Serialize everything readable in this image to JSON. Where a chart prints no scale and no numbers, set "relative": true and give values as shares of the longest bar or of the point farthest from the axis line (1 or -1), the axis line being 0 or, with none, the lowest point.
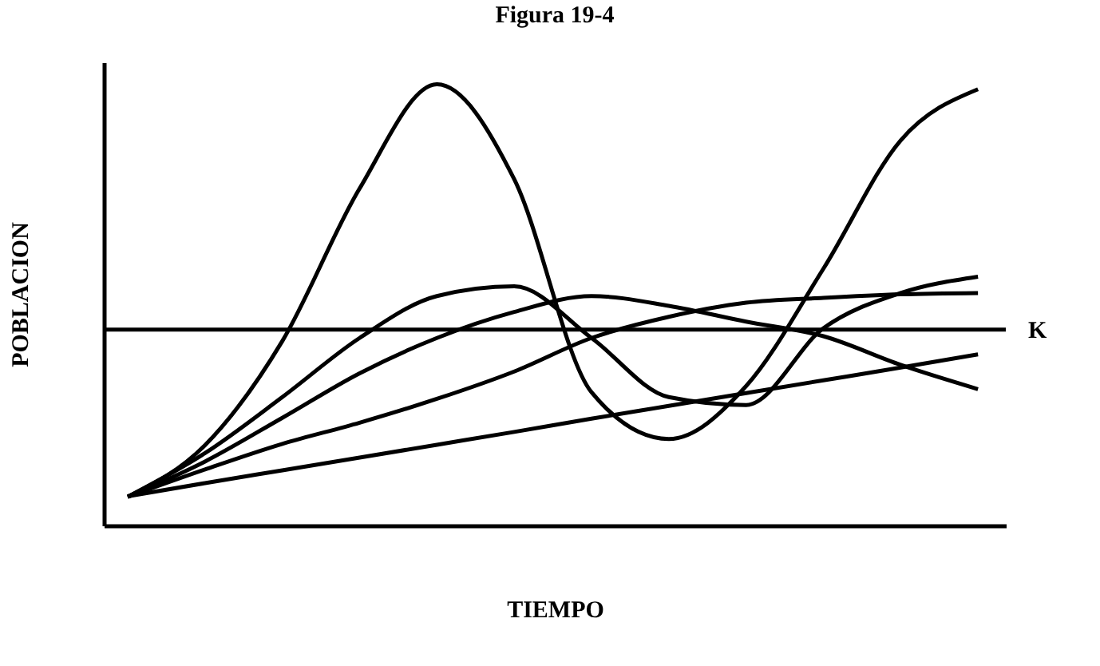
{
  "chart_data": {
    "type": "line",
    "title": "Figura 19-4",
    "xlabel": "TIEMPO",
    "ylabel": "POBLACION",
    "relative": true,
    "categories": [
      null,
      null,
      null,
      null,
      null,
      null,
      null,
      null,
      null,
      null,
      null,
      null
    ],
    "series": [
      {
        "color": "#000000",
        "values": [
          0.065,
          0.182,
          0.418,
          0.764,
          1.0,
          0.785,
          0.302,
          0.196,
          0.316,
          0.582,
          0.873,
          0.989
        ]
      },
      {
        "color": "#000000",
        "values": [
          0.065,
          0.164,
          0.291,
          0.425,
          0.52,
          0.542,
          0.425,
          0.291,
          0.273,
          0.447,
          0.527,
          0.564
        ]
      },
      {
        "color": "#000000",
        "values": [
          0.065,
          0.145,
          0.244,
          0.345,
          0.425,
          0.484,
          0.52,
          0.498,
          0.462,
          0.429,
          0.364,
          0.309
        ]
      },
      {
        "color": "#000000",
        "values": [
          0.065,
          0.127,
          0.185,
          0.233,
          0.287,
          0.349,
          0.425,
          0.473,
          0.505,
          0.516,
          0.524,
          0.527
        ]
      },
      {
        "color": "#000000",
        "values": [
          0.066,
          0.096,
          0.125,
          0.154,
          0.183,
          0.212,
          0.242,
          0.271,
          0.3,
          0.329,
          0.358,
          0.388
        ]
      }
    ],
    "ref_lines": [
      {
        "axis": "y",
        "value": 0.444,
        "label": "K",
        "color": "#000000"
      }
    ],
    "grid": false,
    "legend": false,
    "marker": "none",
    "line_style": "solid"
  }
}
